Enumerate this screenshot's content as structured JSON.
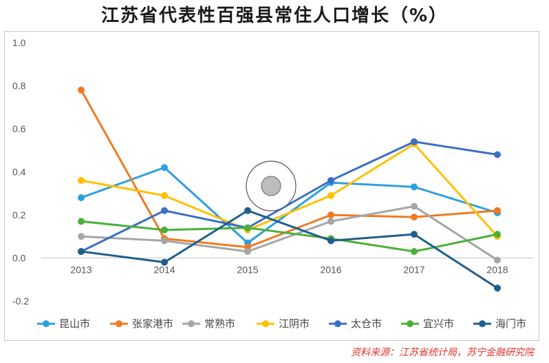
{
  "chart_data": {
    "type": "line",
    "title": "江苏省代表性百强县常住人口增长（%）",
    "categories": [
      "2013",
      "2014",
      "2015",
      "2016",
      "2017",
      "2018"
    ],
    "ylim": [
      -0.2,
      1.0
    ],
    "yticks": [
      "1.0",
      "0.8",
      "0.6",
      "0.4",
      "0.2",
      "0.0",
      "-0.2"
    ],
    "ytick_values": [
      1.0,
      0.8,
      0.6,
      0.4,
      0.2,
      0.0,
      -0.2
    ],
    "grid": false,
    "legend_position": "bottom",
    "series": [
      {
        "name": "昆山市",
        "color": "#2e9fe0",
        "values": [
          0.28,
          0.42,
          0.07,
          0.35,
          0.33,
          0.21
        ]
      },
      {
        "name": "张家港市",
        "color": "#f07a22",
        "values": [
          0.78,
          0.09,
          0.05,
          0.2,
          0.19,
          0.22
        ]
      },
      {
        "name": "常熟市",
        "color": "#a6a6a6",
        "values": [
          0.1,
          0.08,
          0.03,
          0.17,
          0.24,
          -0.01
        ]
      },
      {
        "name": "江阴市",
        "color": "#ffc000",
        "values": [
          0.36,
          0.29,
          0.13,
          0.29,
          0.53,
          0.1
        ]
      },
      {
        "name": "太仓市",
        "color": "#3a6fc4",
        "values": [
          0.03,
          0.22,
          0.14,
          0.36,
          0.54,
          0.48
        ]
      },
      {
        "name": "宜兴市",
        "color": "#4caf3a",
        "values": [
          0.17,
          0.13,
          0.14,
          0.09,
          0.03,
          0.11
        ]
      },
      {
        "name": "海门市",
        "color": "#1f5e8c",
        "values": [
          0.03,
          -0.02,
          0.22,
          0.08,
          0.11,
          -0.14
        ]
      }
    ]
  },
  "source_note": "资料来源：江苏省统计局，苏宁金融研究院"
}
